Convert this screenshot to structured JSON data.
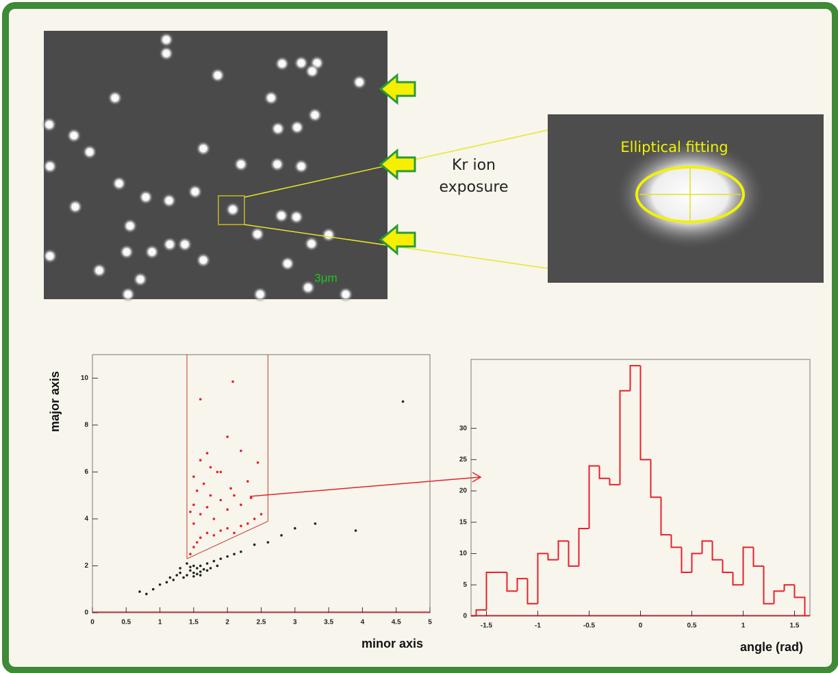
{
  "figure": {
    "exposure_label": "Kr ion exposure",
    "fit_label": "Elliptical fitting",
    "scale_label": "3μm"
  },
  "chart_data": [
    {
      "type": "scatter",
      "xlabel": "minor axis",
      "ylabel": "major axis",
      "xlim": [
        0,
        5
      ],
      "ylim": [
        0,
        11
      ],
      "xticks": [
        0,
        0.5,
        1,
        1.5,
        2,
        2.5,
        3,
        3.5,
        4,
        4.5,
        5
      ],
      "yticks": [
        0,
        2,
        4,
        6,
        8,
        10
      ],
      "gate": {
        "xmin": 1.4,
        "xmax": 2.6,
        "ylow": [
          2.3,
          3.9
        ],
        "color": "#c0392b"
      },
      "series": [
        {
          "color": "#222222",
          "x": [
            1.45,
            1.5,
            1.55,
            1.6,
            1.5,
            1.4,
            1.65,
            1.7,
            1.35,
            1.55,
            1.6,
            1.45,
            1.75,
            1.8,
            1.3,
            1.2,
            1.1,
            1.0,
            0.9,
            0.8,
            1.9,
            2.0,
            2.1,
            2.2,
            2.4,
            2.6,
            2.8,
            3.0,
            1.5,
            1.6,
            1.7,
            1.4,
            1.3,
            0.7,
            1.85,
            1.25,
            3.3,
            4.6,
            3.9,
            1.15
          ],
          "values": [
            1.8,
            1.7,
            1.9,
            1.75,
            2.0,
            1.6,
            1.85,
            2.1,
            1.5,
            1.65,
            2.0,
            1.95,
            1.9,
            2.2,
            1.7,
            1.4,
            1.3,
            1.2,
            1.0,
            0.8,
            2.3,
            2.4,
            2.5,
            2.6,
            2.9,
            3.0,
            3.3,
            3.6,
            1.55,
            1.6,
            1.8,
            2.1,
            1.9,
            0.9,
            2.0,
            1.6,
            3.8,
            9.0,
            3.5,
            1.5
          ]
        },
        {
          "color": "#e8202a",
          "x": [
            1.45,
            1.5,
            1.55,
            1.6,
            1.7,
            1.8,
            1.9,
            2.0,
            2.1,
            2.2,
            2.3,
            2.4,
            2.5,
            1.5,
            1.6,
            1.7,
            1.8,
            1.9,
            2.0,
            2.1,
            2.2,
            1.45,
            1.55,
            1.65,
            1.75,
            1.85,
            2.05,
            2.3,
            1.6,
            1.75,
            1.5,
            2.45,
            1.7,
            2.2,
            1.9,
            1.6,
            2.08,
            2.0,
            2.35,
            1.5
          ],
          "values": [
            2.5,
            2.8,
            3.0,
            3.2,
            3.4,
            3.3,
            3.5,
            3.6,
            3.4,
            3.7,
            3.8,
            4.0,
            4.2,
            3.8,
            4.2,
            4.5,
            4.0,
            4.8,
            4.4,
            5.0,
            4.6,
            4.3,
            5.2,
            5.5,
            5.0,
            6.0,
            5.3,
            5.6,
            6.5,
            6.2,
            5.8,
            6.4,
            6.8,
            6.9,
            6.0,
            9.1,
            9.85,
            7.5,
            4.9,
            4.6
          ]
        }
      ]
    },
    {
      "type": "histogram",
      "xlabel": "angle (rad)",
      "color": "#e8202a",
      "xlim": [
        -1.65,
        1.65
      ],
      "ylim": [
        0,
        41
      ],
      "xticks": [
        -1.5,
        -1,
        -0.5,
        0,
        0.5,
        1,
        1.5
      ],
      "yticks": [
        0,
        5,
        10,
        15,
        20,
        25,
        30
      ],
      "bins": [
        -1.6,
        -1.5,
        -1.4,
        -1.3,
        -1.2,
        -1.1,
        -1.0,
        -0.9,
        -0.8,
        -0.7,
        -0.6,
        -0.5,
        -0.4,
        -0.3,
        -0.2,
        -0.1,
        0,
        0.1,
        0.2,
        0.3,
        0.4,
        0.5,
        0.6,
        0.7,
        0.8,
        0.9,
        1.0,
        1.1,
        1.2,
        1.3,
        1.4,
        1.5,
        1.6
      ],
      "values": [
        1,
        7,
        7,
        4,
        6,
        2,
        10,
        9,
        12,
        8,
        14,
        24,
        22,
        21,
        36,
        40,
        25,
        19,
        13,
        11,
        7,
        10,
        12,
        9,
        7,
        5,
        11,
        8,
        2,
        4,
        5,
        3
      ]
    }
  ]
}
